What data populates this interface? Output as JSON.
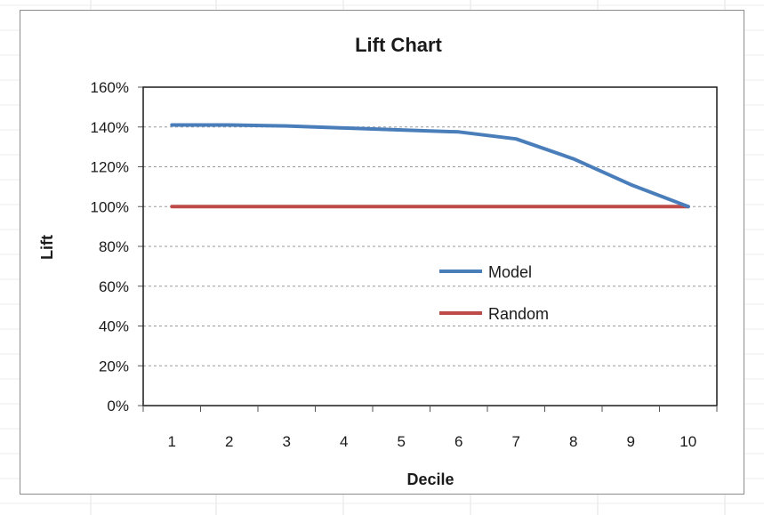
{
  "chart_data": {
    "type": "line",
    "title": "Lift Chart",
    "xlabel": "Decile",
    "ylabel": "Lift",
    "x": [
      1,
      2,
      3,
      4,
      5,
      6,
      7,
      8,
      9,
      10
    ],
    "x_tick_labels": [
      "1",
      "2",
      "3",
      "4",
      "5",
      "6",
      "7",
      "8",
      "9",
      "10"
    ],
    "ylim": [
      0,
      160
    ],
    "y_ticks": [
      0,
      20,
      40,
      60,
      80,
      100,
      120,
      140,
      160
    ],
    "y_tick_labels": [
      "0%",
      "20%",
      "40%",
      "60%",
      "80%",
      "100%",
      "120%",
      "140%",
      "160%"
    ],
    "grid": "horizontal dashed",
    "legend_placement": "center-right",
    "series": [
      {
        "name": "Model",
        "color": "#4a7ebb",
        "values": [
          141,
          141,
          140.5,
          139.5,
          138.5,
          137.5,
          134,
          124,
          111,
          100
        ]
      },
      {
        "name": "Random",
        "color": "#be4b48",
        "values": [
          100,
          100,
          100,
          100,
          100,
          100,
          100,
          100,
          100,
          100
        ]
      }
    ]
  }
}
